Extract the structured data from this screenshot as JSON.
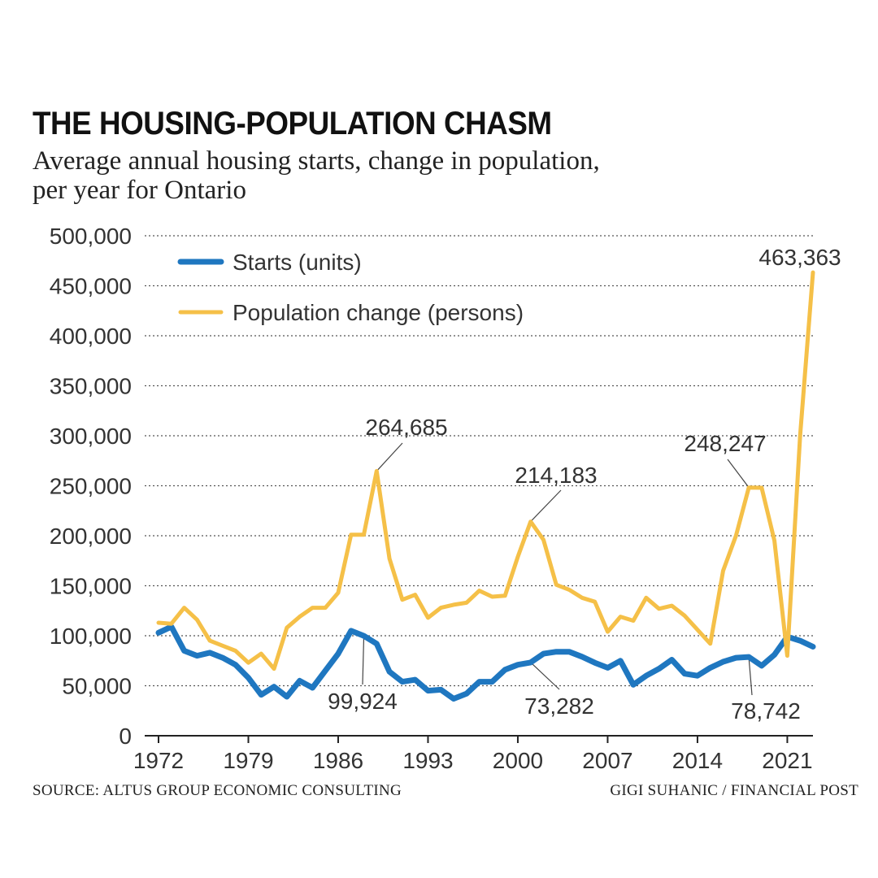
{
  "title": "THE HOUSING-POPULATION CHASM",
  "subtitle_line1": "Average annual housing starts, change in population,",
  "subtitle_line2": "per year for Ontario",
  "source": "SOURCE: ALTUS GROUP ECONOMIC CONSULTING",
  "credit": "GIGI SUHANIC / FINANCIAL POST",
  "colors": {
    "starts": "#1f77c0",
    "population": "#f5c048",
    "grid": "#555555"
  },
  "chart_data": {
    "type": "line",
    "x": [
      1972,
      1973,
      1974,
      1975,
      1976,
      1977,
      1978,
      1979,
      1980,
      1981,
      1982,
      1983,
      1984,
      1985,
      1986,
      1987,
      1988,
      1989,
      1990,
      1991,
      1992,
      1993,
      1994,
      1995,
      1996,
      1997,
      1998,
      1999,
      2000,
      2001,
      2002,
      2003,
      2004,
      2005,
      2006,
      2007,
      2008,
      2009,
      2010,
      2011,
      2012,
      2013,
      2014,
      2015,
      2016,
      2017,
      2018,
      2019,
      2020,
      2021,
      2022,
      2023
    ],
    "series": [
      {
        "name": "Starts (units)",
        "values": [
          103000,
          109000,
          85000,
          80000,
          83000,
          78000,
          71000,
          58000,
          41000,
          49000,
          39000,
          55000,
          48000,
          65000,
          82000,
          105000,
          99924,
          92000,
          64000,
          54000,
          56000,
          45000,
          46000,
          37000,
          42000,
          54000,
          54000,
          66000,
          71000,
          73282,
          82000,
          84000,
          84000,
          79000,
          73000,
          68000,
          75000,
          51000,
          60000,
          67000,
          76000,
          62000,
          60000,
          68000,
          74000,
          78000,
          78742,
          70000,
          81000,
          99000,
          95000,
          89000
        ]
      },
      {
        "name": "Population change (persons)",
        "values": [
          113000,
          112000,
          128000,
          116000,
          95000,
          90000,
          85000,
          73000,
          82000,
          67000,
          108000,
          119000,
          128000,
          128000,
          143000,
          201000,
          201000,
          264685,
          177000,
          136000,
          141000,
          118000,
          128000,
          131000,
          133000,
          145000,
          139000,
          140000,
          179000,
          214183,
          196000,
          151000,
          146000,
          138000,
          134000,
          104000,
          119000,
          115000,
          138000,
          127000,
          130000,
          120000,
          106000,
          92000,
          165000,
          200000,
          248247,
          248000,
          195000,
          80000,
          300000,
          463363
        ]
      }
    ],
    "annotations": [
      {
        "label": "264,685",
        "series": 1,
        "x": 1989
      },
      {
        "label": "214,183",
        "series": 1,
        "x": 2001
      },
      {
        "label": "248,247",
        "series": 1,
        "x": 2018
      },
      {
        "label": "463,363",
        "series": 1,
        "x": 2023
      },
      {
        "label": "99,924",
        "series": 0,
        "x": 1988
      },
      {
        "label": "73,282",
        "series": 0,
        "x": 2001
      },
      {
        "label": "78,742",
        "series": 0,
        "x": 2018
      }
    ],
    "title": "THE HOUSING-POPULATION CHASM",
    "xlabel": "",
    "ylabel": "",
    "ylim": [
      0,
      500000
    ],
    "yticks": [
      0,
      50000,
      100000,
      150000,
      200000,
      250000,
      300000,
      350000,
      400000,
      450000,
      500000
    ],
    "ytick_labels": [
      "0",
      "50,000",
      "100,000",
      "150,000",
      "200,000",
      "250,000",
      "300,000",
      "350,000",
      "400,000",
      "450,000",
      "500,000"
    ],
    "xticks": [
      1972,
      1979,
      1986,
      1993,
      2000,
      2007,
      2014,
      2021
    ],
    "xtick_labels": [
      "1972",
      "1979",
      "1986",
      "1993",
      "2000",
      "2007",
      "2014",
      "2021"
    ],
    "legend": [
      "Starts (units)",
      "Population change (persons)"
    ],
    "legend_position": "top-left",
    "grid": true
  }
}
